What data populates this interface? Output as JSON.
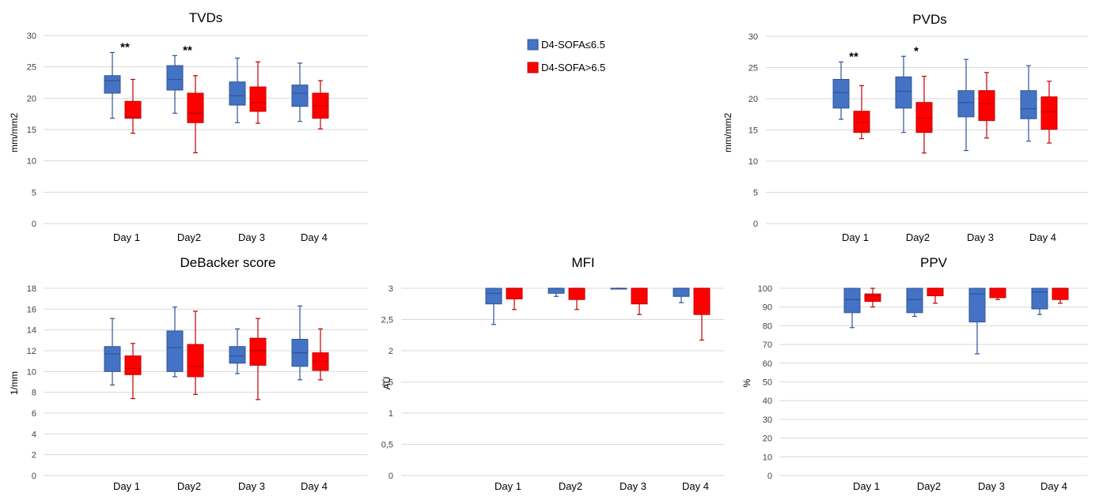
{
  "colors": {
    "blue": "#4472C4",
    "blue_edge": "#2F5597",
    "red": "#FF0000",
    "red_edge": "#C00000",
    "grid": "#D9D9D9"
  },
  "legend": [
    {
      "label": "D4-SOFA≤6.5",
      "color": "#4472C4"
    },
    {
      "label": "D4-SOFA>6.5",
      "color": "#FF0000"
    }
  ],
  "chart_data": [
    {
      "id": "tvds",
      "type": "boxplot",
      "title": "TVDs",
      "ylabel": "mm/mm2",
      "ylim": [
        0,
        30
      ],
      "yticks": [
        "0",
        "5",
        "10",
        "15",
        "20",
        "25",
        "30"
      ],
      "categories": [
        "Day 1",
        "Day2",
        "Day 3",
        "Day 4"
      ],
      "annotations": [
        "**",
        "**",
        "",
        ""
      ],
      "series": [
        {
          "name": "D4-SOFA≤6.5",
          "boxes": [
            {
              "min": 16.8,
              "q1": 20.8,
              "median": 22.8,
              "q3": 23.6,
              "max": 27.3
            },
            {
              "min": 17.6,
              "q1": 21.3,
              "median": 23.0,
              "q3": 25.2,
              "max": 26.8
            },
            {
              "min": 16.1,
              "q1": 18.9,
              "median": 20.4,
              "q3": 22.6,
              "max": 26.4
            },
            {
              "min": 16.3,
              "q1": 18.7,
              "median": 20.8,
              "q3": 22.1,
              "max": 25.6
            }
          ]
        },
        {
          "name": "D4-SOFA>6.5",
          "boxes": [
            {
              "min": 14.4,
              "q1": 16.8,
              "median": 16.9,
              "q3": 19.5,
              "max": 23.0
            },
            {
              "min": 11.3,
              "q1": 16.1,
              "median": 17.6,
              "q3": 20.8,
              "max": 23.6
            },
            {
              "min": 16.0,
              "q1": 17.9,
              "median": 19.3,
              "q3": 21.8,
              "max": 25.8
            },
            {
              "min": 15.1,
              "q1": 16.8,
              "median": 18.8,
              "q3": 20.8,
              "max": 22.8
            }
          ]
        }
      ]
    },
    {
      "id": "pvds",
      "type": "boxplot",
      "title": "PVDs",
      "ylabel": "mm/mm2",
      "ylim": [
        0,
        30
      ],
      "yticks": [
        "0",
        "5",
        "10",
        "15",
        "20",
        "25",
        "30"
      ],
      "categories": [
        "Day 1",
        "Day2",
        "Day 3",
        "Day 4"
      ],
      "annotations": [
        "**",
        "*",
        "",
        ""
      ],
      "series": [
        {
          "name": "D4-SOFA≤6.5",
          "boxes": [
            {
              "min": 16.7,
              "q1": 18.5,
              "median": 21.0,
              "q3": 23.1,
              "max": 25.9
            },
            {
              "min": 14.6,
              "q1": 18.5,
              "median": 21.2,
              "q3": 23.5,
              "max": 26.8
            },
            {
              "min": 11.7,
              "q1": 17.1,
              "median": 19.4,
              "q3": 21.3,
              "max": 26.3
            },
            {
              "min": 13.2,
              "q1": 16.8,
              "median": 18.4,
              "q3": 21.3,
              "max": 25.3
            }
          ]
        },
        {
          "name": "D4-SOFA>6.5",
          "boxes": [
            {
              "min": 13.6,
              "q1": 14.6,
              "median": 16.2,
              "q3": 18.0,
              "max": 22.1
            },
            {
              "min": 11.3,
              "q1": 14.6,
              "median": 16.9,
              "q3": 19.4,
              "max": 23.6
            },
            {
              "min": 13.7,
              "q1": 16.5,
              "median": 19.2,
              "q3": 21.3,
              "max": 24.2
            },
            {
              "min": 12.9,
              "q1": 15.1,
              "median": 17.9,
              "q3": 20.3,
              "max": 22.8
            }
          ]
        }
      ]
    },
    {
      "id": "debacker",
      "type": "boxplot",
      "title": "DeBacker score",
      "ylabel": "1/mm",
      "ylim": [
        0,
        18
      ],
      "yticks": [
        "0",
        "2",
        "4",
        "6",
        "8",
        "10",
        "12",
        "14",
        "16",
        "18"
      ],
      "categories": [
        "Day 1",
        "Day2",
        "Day 3",
        "Day 4"
      ],
      "annotations": [
        "",
        "",
        "",
        ""
      ],
      "series": [
        {
          "name": "D4-SOFA≤6.5",
          "boxes": [
            {
              "min": 8.7,
              "q1": 10.0,
              "median": 11.7,
              "q3": 12.4,
              "max": 15.1
            },
            {
              "min": 9.5,
              "q1": 10.0,
              "median": 12.3,
              "q3": 13.9,
              "max": 16.2
            },
            {
              "min": 9.8,
              "q1": 10.8,
              "median": 11.5,
              "q3": 12.4,
              "max": 14.1
            },
            {
              "min": 9.2,
              "q1": 10.5,
              "median": 11.8,
              "q3": 13.1,
              "max": 16.3
            }
          ]
        },
        {
          "name": "D4-SOFA>6.5",
          "boxes": [
            {
              "min": 7.4,
              "q1": 9.7,
              "median": 10.3,
              "q3": 11.5,
              "max": 12.7
            },
            {
              "min": 7.8,
              "q1": 9.5,
              "median": 10.5,
              "q3": 12.6,
              "max": 15.8
            },
            {
              "min": 7.3,
              "q1": 10.6,
              "median": 12.0,
              "q3": 13.2,
              "max": 15.1
            },
            {
              "min": 9.2,
              "q1": 10.1,
              "median": 11.0,
              "q3": 11.8,
              "max": 14.1
            }
          ]
        }
      ]
    },
    {
      "id": "mfi",
      "type": "boxplot",
      "title": "MFI",
      "ylabel": "AU",
      "ylim": [
        0,
        3
      ],
      "yticks": [
        "0",
        "0,5",
        "1",
        "1,5",
        "2",
        "2,5",
        "3"
      ],
      "categories": [
        "Day 1",
        "Day2",
        "Day 3",
        "Day 4"
      ],
      "annotations": [
        "",
        "",
        "",
        ""
      ],
      "series": [
        {
          "name": "D4-SOFA≤6.5",
          "boxes": [
            {
              "min": 2.42,
              "q1": 2.75,
              "median": 2.92,
              "q3": 3.0,
              "max": 3.0
            },
            {
              "min": 2.87,
              "q1": 2.92,
              "median": 3.0,
              "q3": 3.0,
              "max": 3.0
            },
            {
              "min": 3.0,
              "q1": 3.0,
              "median": 3.0,
              "q3": 3.0,
              "max": 3.0
            },
            {
              "min": 2.77,
              "q1": 2.87,
              "median": 3.0,
              "q3": 3.0,
              "max": 3.0
            }
          ]
        },
        {
          "name": "D4-SOFA>6.5",
          "boxes": [
            {
              "min": 2.66,
              "q1": 2.83,
              "median": 3.0,
              "q3": 3.0,
              "max": 3.0
            },
            {
              "min": 2.66,
              "q1": 2.82,
              "median": 3.0,
              "q3": 3.0,
              "max": 3.0
            },
            {
              "min": 2.58,
              "q1": 2.75,
              "median": 3.0,
              "q3": 3.0,
              "max": 3.0
            },
            {
              "min": 2.17,
              "q1": 2.58,
              "median": 3.0,
              "q3": 3.0,
              "max": 3.0
            }
          ]
        }
      ]
    },
    {
      "id": "ppv",
      "type": "boxplot",
      "title": "PPV",
      "ylabel": "%",
      "ylim": [
        0,
        100
      ],
      "yticks": [
        "0",
        "10",
        "20",
        "30",
        "40",
        "50",
        "60",
        "70",
        "80",
        "90",
        "100"
      ],
      "categories": [
        "Day 1",
        "Day2",
        "Day 3",
        "Day 4"
      ],
      "annotations": [
        "",
        "",
        "",
        ""
      ],
      "series": [
        {
          "name": "D4-SOFA≤6.5",
          "boxes": [
            {
              "min": 79,
              "q1": 87,
              "median": 94,
              "q3": 100,
              "max": 100
            },
            {
              "min": 85,
              "q1": 87,
              "median": 94,
              "q3": 100,
              "max": 100
            },
            {
              "min": 65,
              "q1": 82,
              "median": 97,
              "q3": 100,
              "max": 100
            },
            {
              "min": 86,
              "q1": 89,
              "median": 98,
              "q3": 100,
              "max": 100
            }
          ]
        },
        {
          "name": "D4-SOFA>6.5",
          "boxes": [
            {
              "min": 90,
              "q1": 93,
              "median": 96,
              "q3": 97,
              "max": 100
            },
            {
              "min": 92,
              "q1": 96,
              "median": 100,
              "q3": 100,
              "max": 100
            },
            {
              "min": 94,
              "q1": 95,
              "median": 100,
              "q3": 100,
              "max": 100
            },
            {
              "min": 92,
              "q1": 94,
              "median": 100,
              "q3": 100,
              "max": 100
            }
          ]
        }
      ]
    }
  ]
}
